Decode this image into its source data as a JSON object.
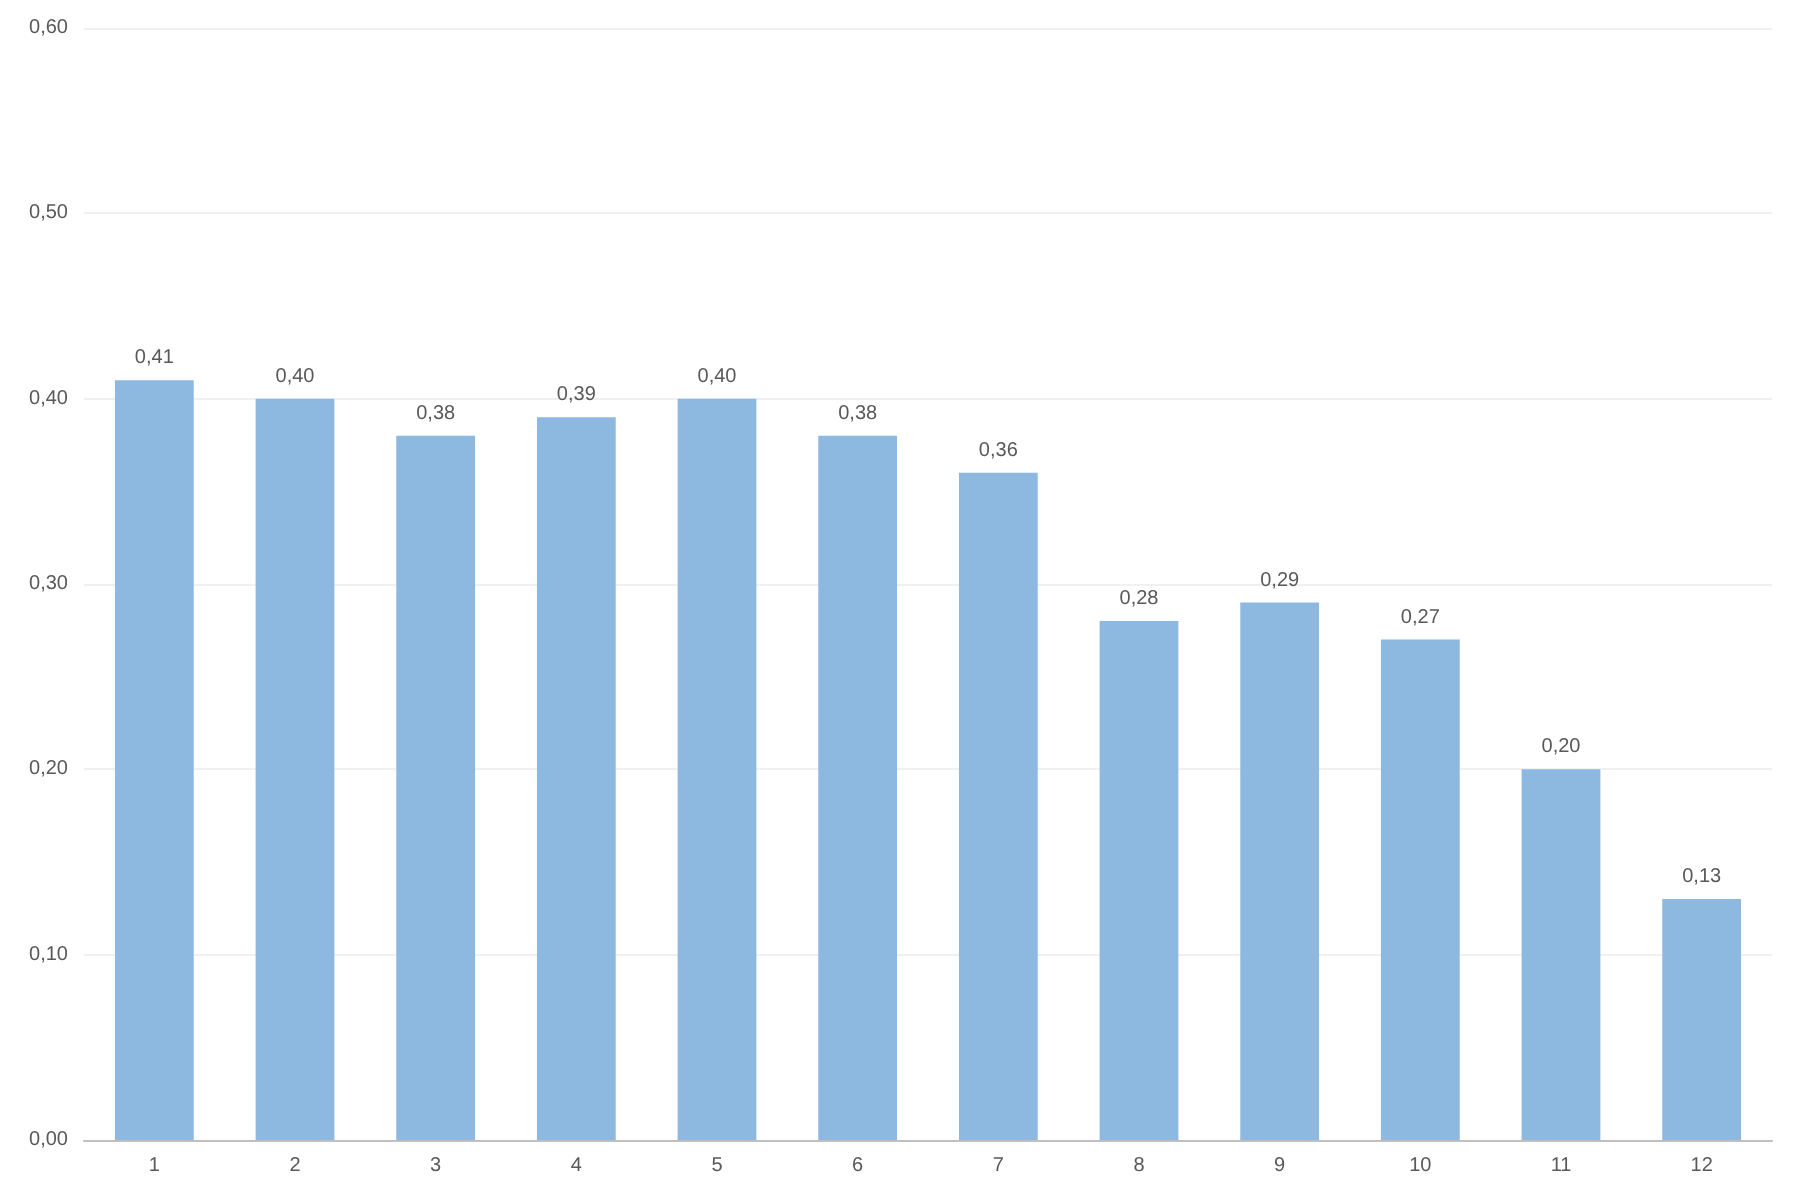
{
  "chart_data": {
    "type": "bar",
    "categories": [
      "1",
      "2",
      "3",
      "4",
      "5",
      "6",
      "7",
      "8",
      "9",
      "10",
      "11",
      "12"
    ],
    "values": [
      0.41,
      0.4,
      0.38,
      0.39,
      0.4,
      0.38,
      0.36,
      0.28,
      0.29,
      0.27,
      0.2,
      0.13
    ],
    "value_labels": [
      "0,41",
      "0,40",
      "0,38",
      "0,39",
      "0,40",
      "0,38",
      "0,36",
      "0,28",
      "0,29",
      "0,27",
      "0,20",
      "0,13"
    ],
    "color": "#8db8e0",
    "ylim": [
      0,
      0.6
    ],
    "yticks": [
      {
        "value": 0,
        "label": "0,00"
      },
      {
        "value": 0.1,
        "label": "0,10"
      },
      {
        "value": 0.2,
        "label": "0,20"
      },
      {
        "value": 0.3,
        "label": "0,30"
      },
      {
        "value": 0.4,
        "label": "0,40"
      },
      {
        "value": 0.5,
        "label": "0,50"
      },
      {
        "value": 0.6,
        "label": "0,60"
      }
    ],
    "grid": "y"
  }
}
